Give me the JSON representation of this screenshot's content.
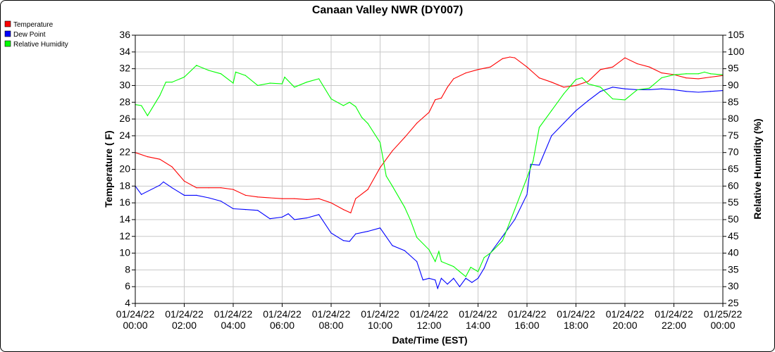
{
  "chart_data": {
    "type": "line",
    "title": "Canaan Valley NWR (DY007)",
    "xlabel": "Date/Time (EST)",
    "ylabel": "Temperature ( F)",
    "y2label": "Relative Humidity (%)",
    "x_unit": "hours since 01/24/22 00:00",
    "xlim": [
      0,
      24
    ],
    "ylim": [
      4,
      36
    ],
    "y2lim": [
      25,
      105
    ],
    "yticks": [
      "4",
      "6",
      "8",
      "10",
      "12",
      "14",
      "16",
      "18",
      "20",
      "22",
      "24",
      "26",
      "28",
      "30",
      "32",
      "34",
      "36"
    ],
    "y2ticks": [
      "25",
      "30",
      "35",
      "40",
      "45",
      "50",
      "55",
      "60",
      "65",
      "70",
      "75",
      "80",
      "85",
      "90",
      "95",
      "100",
      "105"
    ],
    "xticks": [
      {
        "date": "01/24/22",
        "time": "00:00"
      },
      {
        "date": "01/24/22",
        "time": "02:00"
      },
      {
        "date": "01/24/22",
        "time": "04:00"
      },
      {
        "date": "01/24/22",
        "time": "06:00"
      },
      {
        "date": "01/24/22",
        "time": "08:00"
      },
      {
        "date": "01/24/22",
        "time": "10:00"
      },
      {
        "date": "01/24/22",
        "time": "12:00"
      },
      {
        "date": "01/24/22",
        "time": "14:00"
      },
      {
        "date": "01/24/22",
        "time": "16:00"
      },
      {
        "date": "01/24/22",
        "time": "18:00"
      },
      {
        "date": "01/24/22",
        "time": "20:00"
      },
      {
        "date": "01/24/22",
        "time": "22:00"
      },
      {
        "date": "01/25/22",
        "time": "00:00"
      }
    ],
    "grid": true,
    "legend_position": "top-left",
    "series": [
      {
        "name": "Temperature",
        "color": "#ff0000",
        "axis": "left",
        "x": [
          0,
          0.5,
          1,
          1.5,
          2,
          2.5,
          3,
          3.5,
          4,
          4.5,
          5,
          5.5,
          6,
          6.5,
          7,
          7.5,
          8,
          8.5,
          8.8,
          9,
          9.5,
          10,
          10.5,
          11,
          11.5,
          12,
          12.25,
          12.5,
          12.75,
          13,
          13.5,
          14,
          14.5,
          15,
          15.3,
          15.5,
          16,
          16.5,
          17,
          17.5,
          18,
          18.5,
          19,
          19.5,
          20,
          20.5,
          21,
          21.5,
          22,
          22.5,
          23,
          23.5,
          24
        ],
        "y": [
          22.0,
          21.5,
          21.2,
          20.3,
          18.6,
          17.8,
          17.8,
          17.8,
          17.6,
          16.9,
          16.7,
          16.6,
          16.5,
          16.5,
          16.4,
          16.5,
          16.0,
          15.2,
          14.8,
          16.5,
          17.6,
          20.2,
          22.2,
          23.8,
          25.5,
          26.8,
          28.3,
          28.5,
          29.8,
          30.8,
          31.5,
          31.9,
          32.2,
          33.2,
          33.4,
          33.3,
          32.2,
          30.9,
          30.4,
          29.8,
          30.0,
          30.5,
          31.9,
          32.2,
          33.3,
          32.6,
          32.2,
          31.5,
          31.3,
          30.9,
          30.8,
          31.0,
          31.2
        ]
      },
      {
        "name": "Dew Point",
        "color": "#0000ff",
        "axis": "left",
        "x": [
          0,
          0.25,
          1,
          1.15,
          1.5,
          2,
          2.5,
          3,
          3.5,
          4,
          4.5,
          5,
          5.5,
          6,
          6.25,
          6.5,
          7,
          7.5,
          8,
          8.5,
          8.75,
          9,
          9.5,
          10,
          10.5,
          11,
          11.5,
          11.75,
          12,
          12.25,
          12.35,
          12.5,
          12.75,
          13,
          13.25,
          13.5,
          13.75,
          14,
          14.25,
          14.5,
          15,
          15.5,
          16,
          16.15,
          16.5,
          17,
          17.5,
          18,
          18.5,
          19,
          19.5,
          20,
          20.5,
          21,
          21.5,
          22,
          22.5,
          23,
          23.5,
          24
        ],
        "y": [
          18.0,
          17.0,
          18.1,
          18.5,
          17.8,
          16.9,
          16.9,
          16.6,
          16.2,
          15.3,
          15.2,
          15.1,
          14.1,
          14.3,
          14.7,
          14.0,
          14.2,
          14.6,
          12.4,
          11.5,
          11.4,
          12.3,
          12.6,
          13.0,
          10.9,
          10.3,
          9.0,
          6.8,
          7.0,
          6.8,
          5.8,
          7.0,
          6.3,
          7.0,
          6.0,
          7.0,
          6.5,
          7.0,
          8.2,
          10.0,
          12.0,
          14.0,
          17.0,
          20.6,
          20.5,
          24.0,
          25.5,
          27.0,
          28.2,
          29.3,
          29.8,
          29.6,
          29.5,
          29.5,
          29.6,
          29.5,
          29.3,
          29.2,
          29.3,
          29.4
        ]
      },
      {
        "name": "Relative Humidity",
        "color": "#00ff00",
        "axis": "right",
        "x": [
          0,
          0.25,
          0.5,
          1,
          1.25,
          1.5,
          2,
          2.5,
          3,
          3.5,
          4,
          4.1,
          4.5,
          5,
          5.5,
          6,
          6.1,
          6.5,
          7,
          7.5,
          8,
          8.5,
          8.75,
          9,
          9.25,
          9.5,
          10,
          10.25,
          10.5,
          11,
          11.25,
          11.5,
          12,
          12.25,
          12.4,
          12.5,
          13,
          13.25,
          13.5,
          13.7,
          14,
          14.25,
          14.5,
          15,
          15.5,
          16,
          16.25,
          16.5,
          17,
          17.5,
          18,
          18.25,
          18.5,
          19,
          19.5,
          20,
          20.5,
          21,
          21.5,
          22,
          22.5,
          23,
          23.25,
          23.5,
          24
        ],
        "y": [
          84.3,
          84,
          81,
          87,
          91,
          91,
          92.5,
          96,
          94.5,
          93.5,
          90.7,
          94,
          93,
          90,
          90.7,
          90.5,
          92.5,
          89.5,
          91,
          92,
          86,
          84,
          85,
          83.7,
          80.5,
          78.7,
          73,
          63,
          60,
          53.7,
          49.7,
          44.7,
          41,
          37.5,
          40.5,
          37.5,
          36,
          34.5,
          33,
          35.8,
          34.5,
          38.7,
          40,
          43.7,
          53,
          62.5,
          67.5,
          77.5,
          82.5,
          87.5,
          91.8,
          92.3,
          90.5,
          89.5,
          86,
          85.7,
          88.7,
          89.2,
          92.3,
          93.2,
          93.5,
          93.5,
          94,
          93.5,
          93.2
        ]
      }
    ]
  }
}
